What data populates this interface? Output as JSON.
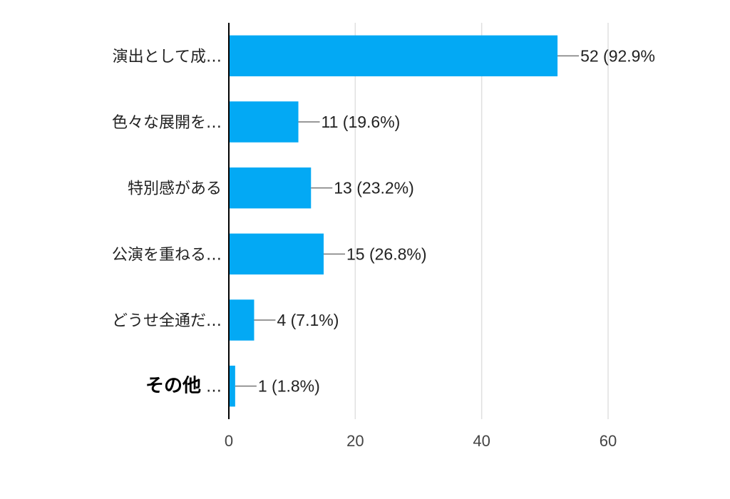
{
  "chart_data": {
    "type": "bar",
    "orientation": "horizontal",
    "categories": [
      "演出として成…",
      "色々な展開を…",
      "特別感がある",
      "公演を重ねる…",
      "どうせ全通だ…",
      "その他"
    ],
    "category_suffix": [
      "",
      "",
      "",
      "",
      "",
      " …"
    ],
    "values": [
      52,
      11,
      13,
      15,
      4,
      1
    ],
    "data_labels": [
      "52 (92.9%",
      "11 (19.6%)",
      "13 (23.2%)",
      "15 (26.8%)",
      "4 (7.1%)",
      "1 (1.8%)"
    ],
    "xlim": [
      0,
      60
    ],
    "xticks": [
      0,
      20,
      40,
      60
    ],
    "xtick_labels": [
      "0",
      "20",
      "40",
      "60"
    ],
    "grid": true,
    "title": "",
    "xlabel": "",
    "ylabel": "",
    "colors": {
      "bar": "#03a9f4",
      "grid": "#e0e0e0",
      "axis": "#000000",
      "leader": "#777777"
    }
  }
}
